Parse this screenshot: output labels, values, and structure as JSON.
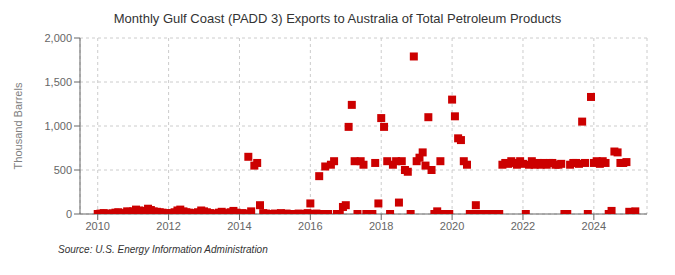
{
  "chart_data": {
    "type": "scatter",
    "title": "Monthly Gulf Coast (PADD 3) Exports to Australia of Total Petroleum Products",
    "ylabel": "Thousand Barrels",
    "annotations": [
      "Source: U.S. Energy Information Administration"
    ],
    "color": "#cc0000",
    "marker": "square",
    "grid": true,
    "xlim": [
      2009.5,
      2025.5
    ],
    "xticks": [
      2010,
      2012,
      2014,
      2016,
      2018,
      2020,
      2022,
      2024
    ],
    "ylim": [
      0,
      2000
    ],
    "yticks": [
      0,
      500,
      {
        "value": 1000,
        "label": "1,000"
      },
      {
        "value": 1500,
        "label": "1,500"
      },
      {
        "value": 2000,
        "label": "2,000"
      }
    ],
    "x": [
      2010.0,
      2010.08,
      2010.17,
      2010.25,
      2010.33,
      2010.42,
      2010.5,
      2010.58,
      2010.67,
      2010.75,
      2010.83,
      2010.92,
      2011.0,
      2011.08,
      2011.17,
      2011.25,
      2011.33,
      2011.42,
      2011.5,
      2011.58,
      2011.67,
      2011.75,
      2011.83,
      2011.92,
      2012.0,
      2012.08,
      2012.17,
      2012.25,
      2012.33,
      2012.42,
      2012.5,
      2012.58,
      2012.67,
      2012.75,
      2012.83,
      2012.92,
      2013.0,
      2013.08,
      2013.17,
      2013.25,
      2013.33,
      2013.42,
      2013.5,
      2013.58,
      2013.67,
      2013.75,
      2013.83,
      2013.92,
      2014.0,
      2014.08,
      2014.17,
      2014.25,
      2014.33,
      2014.42,
      2014.5,
      2014.58,
      2014.67,
      2014.75,
      2014.83,
      2014.92,
      2015.0,
      2015.08,
      2015.17,
      2015.25,
      2015.33,
      2015.42,
      2015.5,
      2015.58,
      2015.67,
      2015.75,
      2015.83,
      2015.92,
      2016.0,
      2016.08,
      2016.17,
      2016.25,
      2016.33,
      2016.42,
      2016.5,
      2016.58,
      2016.67,
      2016.75,
      2016.83,
      2016.92,
      2017.0,
      2017.08,
      2017.17,
      2017.25,
      2017.33,
      2017.42,
      2017.5,
      2017.58,
      2017.67,
      2017.75,
      2017.83,
      2017.92,
      2018.0,
      2018.08,
      2018.17,
      2018.25,
      2018.33,
      2018.42,
      2018.5,
      2018.58,
      2018.67,
      2018.75,
      2018.83,
      2018.92,
      2019.0,
      2019.08,
      2019.17,
      2019.25,
      2019.33,
      2019.42,
      2019.5,
      2019.58,
      2019.67,
      2019.75,
      2019.83,
      2019.92,
      2020.0,
      2020.08,
      2020.17,
      2020.25,
      2020.33,
      2020.42,
      2020.5,
      2020.58,
      2020.67,
      2020.75,
      2020.83,
      2020.92,
      2021.0,
      2021.08,
      2021.17,
      2021.25,
      2021.33,
      2021.42,
      2021.5,
      2021.58,
      2021.67,
      2021.75,
      2021.83,
      2021.92,
      2022.0,
      2022.08,
      2022.17,
      2022.25,
      2022.33,
      2022.42,
      2022.5,
      2022.58,
      2022.67,
      2022.75,
      2022.83,
      2022.92,
      2023.0,
      2023.08,
      2023.17,
      2023.25,
      2023.33,
      2023.42,
      2023.5,
      2023.58,
      2023.67,
      2023.75,
      2023.83,
      2023.92,
      2024.0,
      2024.08,
      2024.17,
      2024.25,
      2024.33,
      2024.42,
      2024.5,
      2024.58,
      2024.67,
      2024.75,
      2024.83,
      2024.92,
      2025.0,
      2025.08,
      2025.17
    ],
    "values": [
      0,
      5,
      10,
      3,
      0,
      8,
      15,
      20,
      10,
      5,
      30,
      25,
      30,
      50,
      40,
      20,
      35,
      60,
      45,
      30,
      25,
      20,
      15,
      10,
      5,
      10,
      20,
      40,
      50,
      30,
      20,
      15,
      10,
      5,
      20,
      40,
      30,
      20,
      10,
      5,
      0,
      15,
      25,
      10,
      5,
      20,
      35,
      15,
      0,
      10,
      5,
      650,
      30,
      550,
      580,
      100,
      10,
      5,
      0,
      0,
      5,
      0,
      10,
      0,
      5,
      0,
      0,
      0,
      5,
      0,
      0,
      10,
      120,
      0,
      5,
      430,
      0,
      540,
      0,
      560,
      600,
      0,
      0,
      80,
      100,
      990,
      1240,
      600,
      0,
      600,
      560,
      0,
      0,
      0,
      580,
      120,
      1090,
      990,
      600,
      0,
      560,
      600,
      130,
      600,
      500,
      480,
      0,
      1790,
      600,
      640,
      700,
      550,
      1100,
      500,
      0,
      30,
      600,
      0,
      0,
      0,
      1300,
      1110,
      860,
      840,
      600,
      560,
      0,
      0,
      100,
      0,
      0,
      0,
      0,
      0,
      0,
      0,
      0,
      560,
      580,
      570,
      600,
      580,
      560,
      600,
      570,
      0,
      560,
      600,
      560,
      580,
      560,
      580,
      560,
      580,
      580,
      560,
      560,
      570,
      0,
      0,
      560,
      580,
      580,
      570,
      1050,
      580,
      0,
      1330,
      580,
      600,
      570,
      600,
      580,
      0,
      35,
      710,
      700,
      580,
      580,
      590,
      25,
      0,
      30
    ]
  }
}
